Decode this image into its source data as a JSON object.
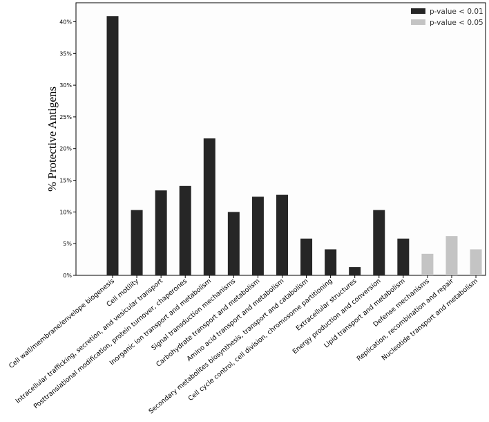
{
  "chart_data": {
    "type": "bar",
    "title": "",
    "xlabel": "",
    "ylabel": "% Protective Antigens",
    "ylim": [
      0,
      43
    ],
    "yticks": [
      0,
      5,
      10,
      15,
      20,
      25,
      30,
      35,
      40
    ],
    "ytick_labels": [
      "0%",
      "5%",
      "10%",
      "15%",
      "20%",
      "25%",
      "30%",
      "35%",
      "40%"
    ],
    "grid": false,
    "legend_position": "top-right",
    "series": [
      {
        "name": "p-value < 0.01",
        "color": "#262626"
      },
      {
        "name": "p-value < 0.05",
        "color": "#c4c4c4"
      }
    ],
    "categories": [
      "Cell wall/membrane/envelope biogenesis",
      "Cell motility",
      "Intracellular trafficking, secretion, and vesicular transport",
      "Posttranslational modification, protein turnover, chaperones",
      "Inorganic ion transport and metabolism",
      "Signal transduction mechanisms",
      "Carbohydrate transport and metabolism",
      "Amino acid transport and metabolism",
      "Secondary metabolites biosynthesis, transport and catabolism",
      "Cell cycle control, cell division, chromosome partitioning",
      "Extracellular structures",
      "Energy production and conversion",
      "Lipid transport and metabolism",
      "Defense mechanisms",
      "Replication, recombination and repair",
      "Nucleotide transport and metabolism"
    ],
    "values": [
      40.9,
      10.3,
      13.4,
      14.1,
      21.6,
      10.0,
      12.4,
      12.7,
      5.8,
      4.1,
      1.3,
      10.3,
      5.8,
      3.4,
      6.2,
      4.1
    ],
    "series_index": [
      0,
      0,
      0,
      0,
      0,
      0,
      0,
      0,
      0,
      0,
      0,
      0,
      0,
      1,
      1,
      1
    ]
  }
}
